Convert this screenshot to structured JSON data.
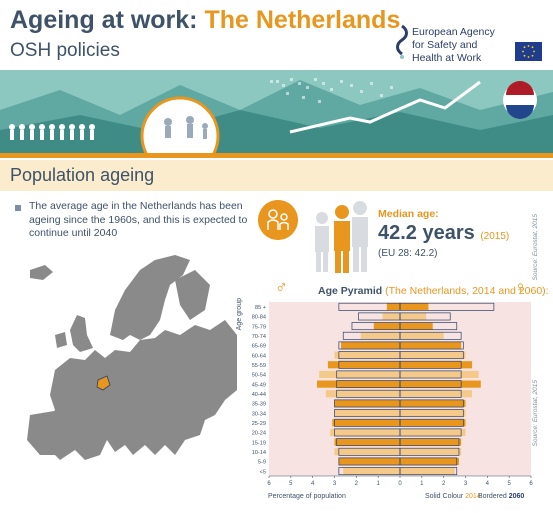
{
  "header": {
    "title_prefix": "Ageing at work: ",
    "title_country": "The Netherlands",
    "subtitle": "OSH policies",
    "agency_name": "European Agency for Safety and Health at Work"
  },
  "section": {
    "title": "Population ageing"
  },
  "intro": {
    "text": "The average age in the Netherlands has been ageing since the 1960s, and this is expected to continue until 2040"
  },
  "median": {
    "label": "Median age:",
    "value": "42.2 years",
    "year": "(2015)",
    "eu": "(EU 28: 42.2)",
    "source": "Source: Eurostat, 2015"
  },
  "pyramid": {
    "title": "Age Pyramid",
    "subtitle": "(The Netherlands, 2014 and 2060):",
    "y_axis_label": "Age group",
    "x_axis_label": "Percentage of population",
    "legend_solid_label": "Solid Colour",
    "legend_solid_year": "2014",
    "legend_bordered_label": "Bordered",
    "legend_bordered_year": "2060",
    "source": "Source: Eurostat, 2015",
    "male_symbol": "♂",
    "female_symbol": "♀"
  },
  "colors": {
    "navy": "#3e5268",
    "orange": "#e8961e",
    "light_orange": "#f5c98a",
    "teal": "#8cc7c0",
    "pink_bg": "#f6e3e2",
    "border_navy": "#2b3f66"
  },
  "chart_data": {
    "type": "bar",
    "title": "Age Pyramid",
    "subtitle": "(The Netherlands, 2014 and 2060):",
    "xlabel": "Percentage of population",
    "ylabel": "Age group",
    "xlim": [
      -6,
      6
    ],
    "x_ticks": [
      "6",
      "5",
      "4",
      "3",
      "2",
      "1",
      "0",
      "1",
      "2",
      "3",
      "4",
      "5",
      "6"
    ],
    "categories": [
      "85 +",
      "80-84",
      "75-79",
      "70-74",
      "65-69",
      "60-64",
      "55-59",
      "50-54",
      "45-49",
      "40-44",
      "35-39",
      "30-34",
      "25-29",
      "20-24",
      "15-19",
      "10-14",
      "5-9",
      "<5"
    ],
    "series": [
      {
        "name": "Male 2014",
        "side": "left",
        "style": "solid",
        "values": [
          0.6,
          0.8,
          1.2,
          1.8,
          2.7,
          3.0,
          3.3,
          3.7,
          3.8,
          3.4,
          3.0,
          3.0,
          3.1,
          3.2,
          3.0,
          3.0,
          2.8,
          2.6
        ]
      },
      {
        "name": "Female 2014",
        "side": "right",
        "style": "solid",
        "values": [
          1.3,
          1.2,
          1.5,
          2.0,
          2.8,
          3.0,
          3.3,
          3.6,
          3.7,
          3.3,
          3.0,
          3.0,
          3.0,
          3.0,
          2.8,
          2.8,
          2.7,
          2.5
        ]
      },
      {
        "name": "Male 2060",
        "side": "left",
        "style": "bordered",
        "values": [
          2.8,
          1.9,
          2.2,
          2.6,
          2.8,
          2.8,
          2.8,
          2.9,
          2.9,
          2.9,
          3.0,
          3.0,
          3.0,
          3.0,
          2.9,
          2.8,
          2.8,
          2.8
        ]
      },
      {
        "name": "Female 2060",
        "side": "right",
        "style": "bordered",
        "values": [
          4.3,
          2.3,
          2.6,
          2.8,
          2.9,
          2.9,
          2.8,
          2.8,
          2.8,
          2.8,
          2.9,
          2.9,
          2.9,
          2.8,
          2.7,
          2.7,
          2.6,
          2.6
        ]
      }
    ]
  }
}
